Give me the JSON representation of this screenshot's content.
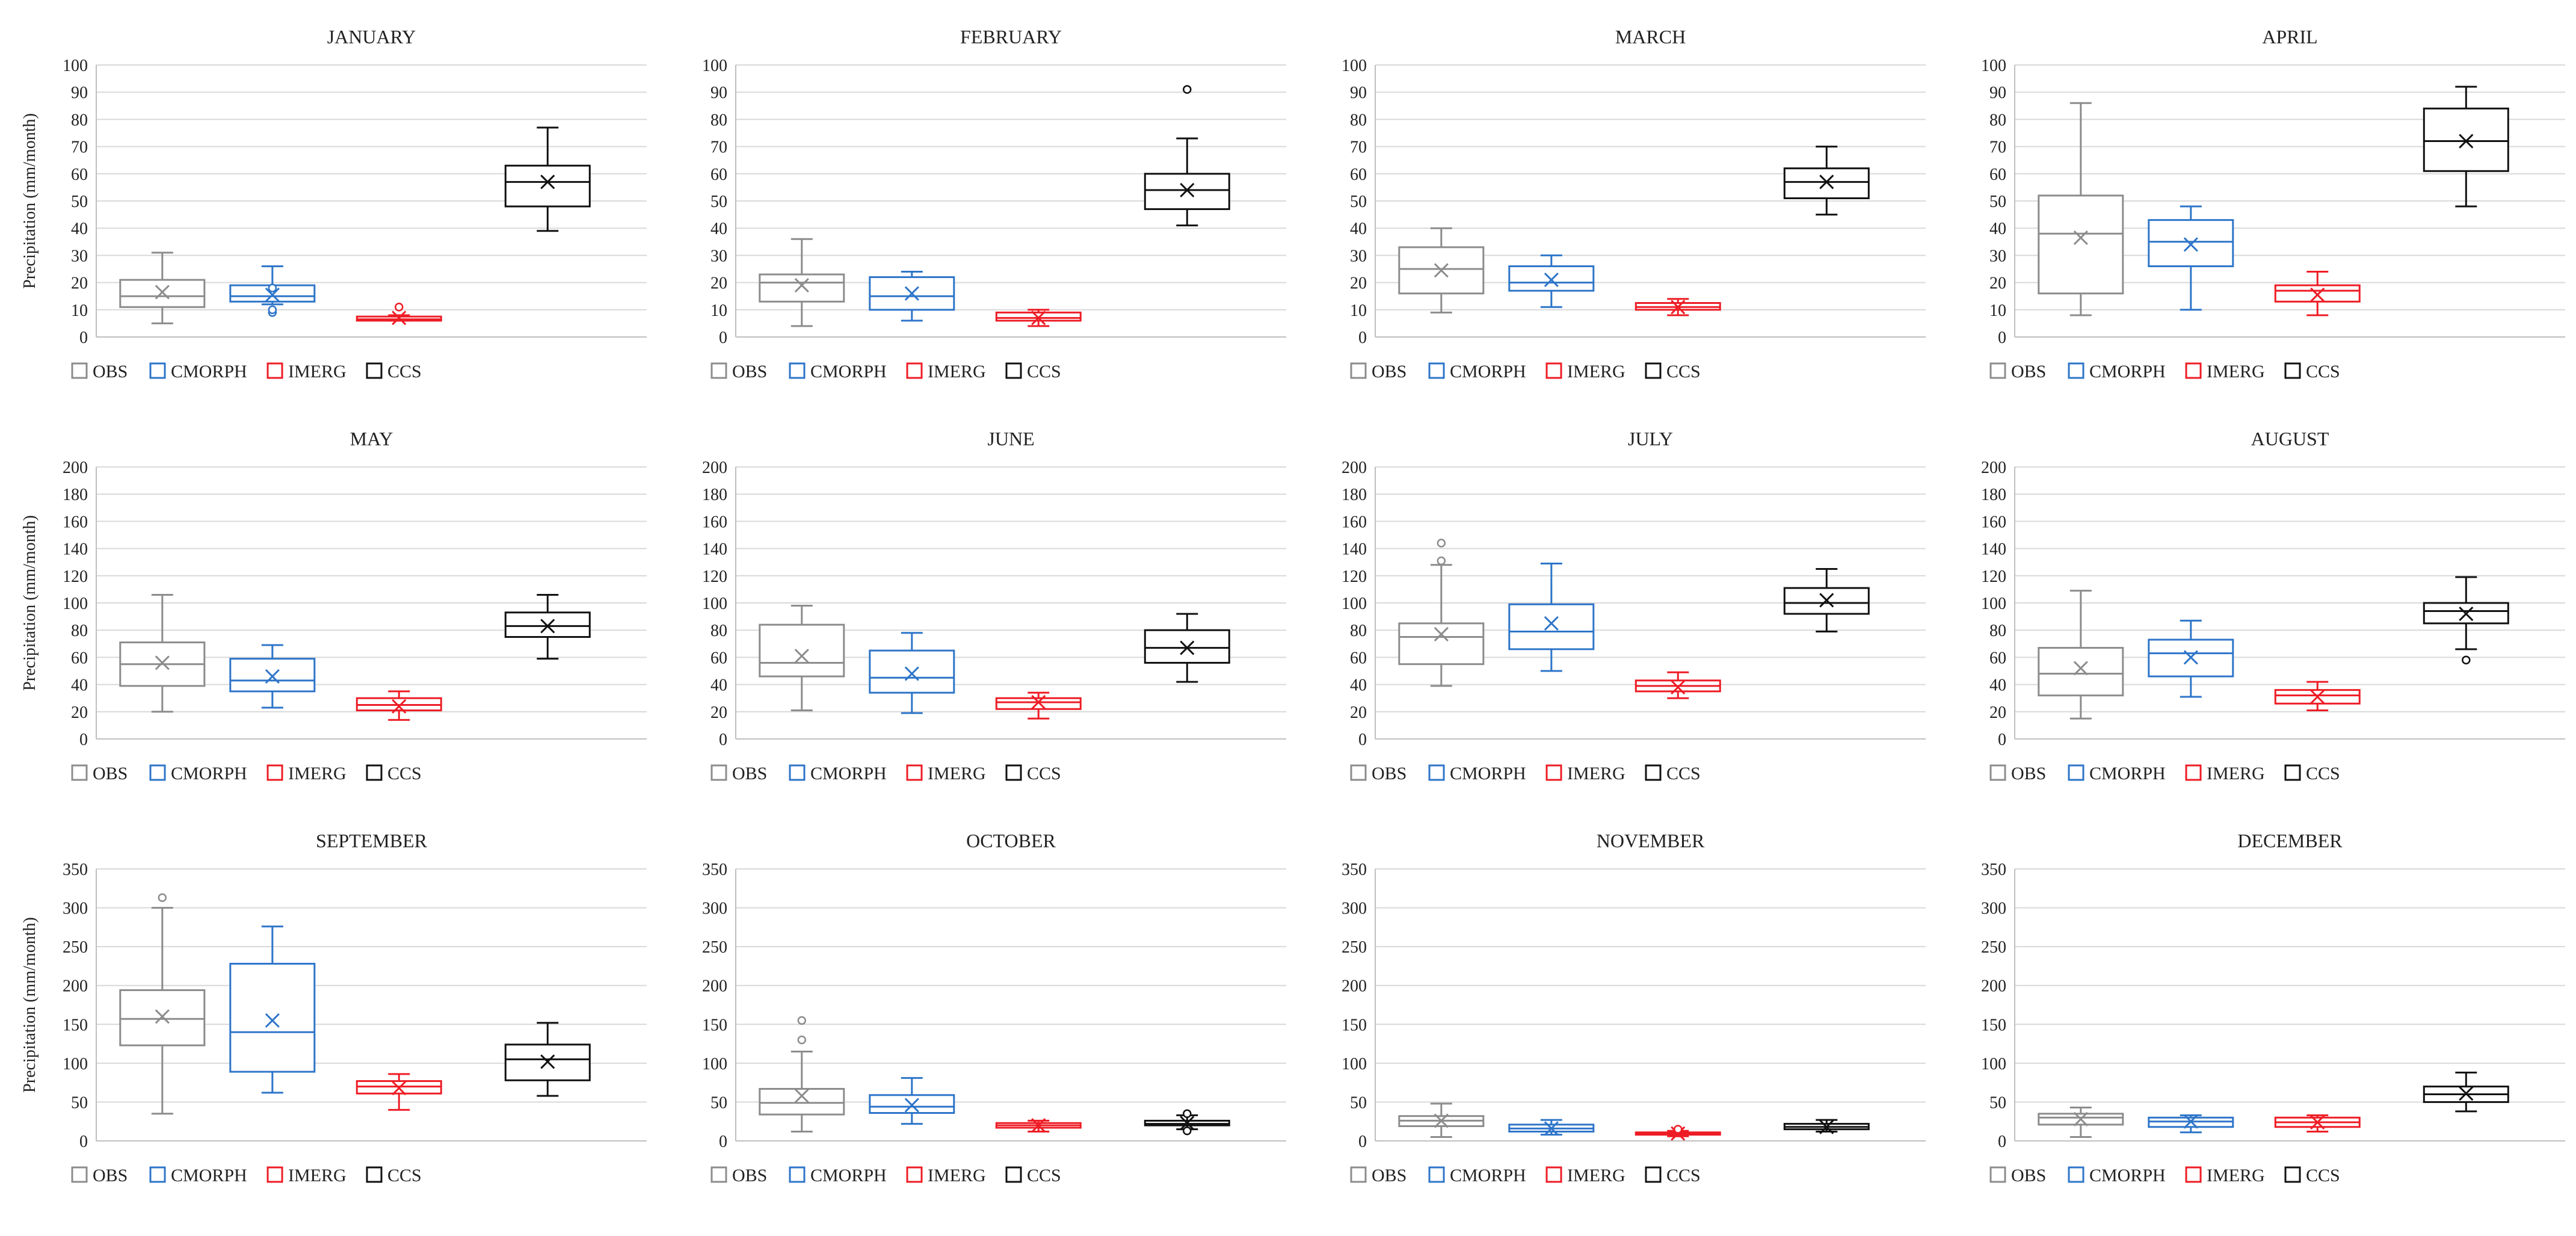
{
  "figure": {
    "ylabel": "Precipitation (mm/month)",
    "legend_placement": "bottom",
    "grid": true
  },
  "series": [
    {
      "name": "OBS",
      "color": "#8c8c8c"
    },
    {
      "name": "CMORPH",
      "color": "#2e75c9"
    },
    {
      "name": "IMERG",
      "color": "#ee1c25"
    },
    {
      "name": "CCS",
      "color": "#111111"
    }
  ],
  "chart_data": [
    {
      "type": "box",
      "title": "JANUARY",
      "ylim": [
        0,
        100
      ],
      "ytick_step": 10,
      "yticks": [
        "0",
        "10",
        "20",
        "30",
        "40",
        "50",
        "60",
        "70",
        "80",
        "90",
        "100"
      ],
      "boxes": [
        {
          "series": "OBS",
          "min": 5,
          "q1": 11,
          "median": 15,
          "q3": 21,
          "max": 31,
          "mean": 16.5,
          "outliers": []
        },
        {
          "series": "CMORPH",
          "min": 12,
          "q1": 13,
          "median": 15,
          "q3": 19,
          "max": 26,
          "mean": 15.5,
          "outliers": [
            9,
            10,
            18
          ]
        },
        {
          "series": "IMERG",
          "min": 6,
          "q1": 6,
          "median": 6.5,
          "q3": 7.5,
          "max": 8,
          "mean": 7,
          "outliers": [
            11
          ]
        },
        {
          "series": "CCS",
          "min": 39,
          "q1": 48,
          "median": 57,
          "q3": 63,
          "max": 77,
          "mean": 57,
          "outliers": []
        }
      ]
    },
    {
      "type": "box",
      "title": "FEBRUARY",
      "ylim": [
        0,
        100
      ],
      "ytick_step": 10,
      "yticks": [
        "0",
        "10",
        "20",
        "30",
        "40",
        "50",
        "60",
        "70",
        "80",
        "90",
        "100"
      ],
      "boxes": [
        {
          "series": "OBS",
          "min": 4,
          "q1": 13,
          "median": 20,
          "q3": 23,
          "max": 36,
          "mean": 19,
          "outliers": []
        },
        {
          "series": "CMORPH",
          "min": 6,
          "q1": 10,
          "median": 15,
          "q3": 22,
          "max": 24,
          "mean": 16,
          "outliers": []
        },
        {
          "series": "IMERG",
          "min": 4,
          "q1": 6,
          "median": 7,
          "q3": 9,
          "max": 10,
          "mean": 7,
          "outliers": []
        },
        {
          "series": "CCS",
          "min": 41,
          "q1": 47,
          "median": 54,
          "q3": 60,
          "max": 73,
          "mean": 54,
          "outliers": [
            91
          ]
        }
      ]
    },
    {
      "type": "box",
      "title": "MARCH",
      "ylim": [
        0,
        100
      ],
      "ytick_step": 10,
      "yticks": [
        "0",
        "10",
        "20",
        "30",
        "40",
        "50",
        "60",
        "70",
        "80",
        "90",
        "100"
      ],
      "boxes": [
        {
          "series": "OBS",
          "min": 9,
          "q1": 16,
          "median": 25,
          "q3": 33,
          "max": 40,
          "mean": 24.5,
          "outliers": []
        },
        {
          "series": "CMORPH",
          "min": 11,
          "q1": 17,
          "median": 20,
          "q3": 26,
          "max": 30,
          "mean": 21,
          "outliers": []
        },
        {
          "series": "IMERG",
          "min": 8,
          "q1": 10,
          "median": 11,
          "q3": 12.5,
          "max": 14,
          "mean": 11,
          "outliers": []
        },
        {
          "series": "CCS",
          "min": 45,
          "q1": 51,
          "median": 57,
          "q3": 62,
          "max": 70,
          "mean": 57,
          "outliers": []
        }
      ]
    },
    {
      "type": "box",
      "title": "APRIL",
      "ylim": [
        0,
        100
      ],
      "ytick_step": 10,
      "yticks": [
        "0",
        "10",
        "20",
        "30",
        "40",
        "50",
        "60",
        "70",
        "80",
        "90",
        "100"
      ],
      "boxes": [
        {
          "series": "OBS",
          "min": 8,
          "q1": 16,
          "median": 38,
          "q3": 52,
          "max": 86,
          "mean": 36.5,
          "outliers": []
        },
        {
          "series": "CMORPH",
          "min": 10,
          "q1": 26,
          "median": 35,
          "q3": 43,
          "max": 48,
          "mean": 34,
          "outliers": []
        },
        {
          "series": "IMERG",
          "min": 8,
          "q1": 13,
          "median": 17,
          "q3": 19,
          "max": 24,
          "mean": 15.5,
          "outliers": []
        },
        {
          "series": "CCS",
          "min": 48,
          "q1": 61,
          "median": 72,
          "q3": 84,
          "max": 92,
          "mean": 72,
          "outliers": []
        }
      ]
    },
    {
      "type": "box",
      "title": "MAY",
      "ylim": [
        0,
        200
      ],
      "ytick_step": 20,
      "yticks": [
        "0",
        "20",
        "40",
        "60",
        "80",
        "100",
        "120",
        "140",
        "160",
        "180",
        "200"
      ],
      "boxes": [
        {
          "series": "OBS",
          "min": 20,
          "q1": 39,
          "median": 55,
          "q3": 71,
          "max": 106,
          "mean": 56,
          "outliers": []
        },
        {
          "series": "CMORPH",
          "min": 23,
          "q1": 35,
          "median": 43,
          "q3": 59,
          "max": 69,
          "mean": 46,
          "outliers": []
        },
        {
          "series": "IMERG",
          "min": 14,
          "q1": 21,
          "median": 25,
          "q3": 30,
          "max": 35,
          "mean": 24,
          "outliers": []
        },
        {
          "series": "CCS",
          "min": 59,
          "q1": 75,
          "median": 83,
          "q3": 93,
          "max": 106,
          "mean": 83,
          "outliers": []
        }
      ]
    },
    {
      "type": "box",
      "title": "JUNE",
      "ylim": [
        0,
        200
      ],
      "ytick_step": 20,
      "yticks": [
        "0",
        "20",
        "40",
        "60",
        "80",
        "100",
        "120",
        "140",
        "160",
        "180",
        "200"
      ],
      "boxes": [
        {
          "series": "OBS",
          "min": 21,
          "q1": 46,
          "median": 56,
          "q3": 84,
          "max": 98,
          "mean": 61,
          "outliers": []
        },
        {
          "series": "CMORPH",
          "min": 19,
          "q1": 34,
          "median": 45,
          "q3": 65,
          "max": 78,
          "mean": 48,
          "outliers": []
        },
        {
          "series": "IMERG",
          "min": 15,
          "q1": 22,
          "median": 27,
          "q3": 30,
          "max": 34,
          "mean": 27,
          "outliers": []
        },
        {
          "series": "CCS",
          "min": 42,
          "q1": 56,
          "median": 67,
          "q3": 80,
          "max": 92,
          "mean": 67,
          "outliers": []
        }
      ]
    },
    {
      "type": "box",
      "title": "JULY",
      "ylim": [
        0,
        200
      ],
      "ytick_step": 20,
      "yticks": [
        "0",
        "20",
        "40",
        "60",
        "80",
        "100",
        "120",
        "140",
        "160",
        "180",
        "200"
      ],
      "boxes": [
        {
          "series": "OBS",
          "min": 39,
          "q1": 55,
          "median": 75,
          "q3": 85,
          "max": 128,
          "mean": 77,
          "outliers": [
            131,
            144
          ]
        },
        {
          "series": "CMORPH",
          "min": 50,
          "q1": 66,
          "median": 79,
          "q3": 99,
          "max": 129,
          "mean": 85,
          "outliers": []
        },
        {
          "series": "IMERG",
          "min": 30,
          "q1": 35,
          "median": 39,
          "q3": 43,
          "max": 49,
          "mean": 38,
          "outliers": []
        },
        {
          "series": "CCS",
          "min": 79,
          "q1": 92,
          "median": 100,
          "q3": 111,
          "max": 125,
          "mean": 102,
          "outliers": []
        }
      ]
    },
    {
      "type": "box",
      "title": "AUGUST",
      "ylim": [
        0,
        200
      ],
      "ytick_step": 20,
      "yticks": [
        "0",
        "20",
        "40",
        "60",
        "80",
        "100",
        "120",
        "140",
        "160",
        "180",
        "200"
      ],
      "boxes": [
        {
          "series": "OBS",
          "min": 15,
          "q1": 32,
          "median": 48,
          "q3": 67,
          "max": 109,
          "mean": 52,
          "outliers": []
        },
        {
          "series": "CMORPH",
          "min": 31,
          "q1": 46,
          "median": 63,
          "q3": 73,
          "max": 87,
          "mean": 60,
          "outliers": []
        },
        {
          "series": "IMERG",
          "min": 21,
          "q1": 26,
          "median": 32,
          "q3": 36,
          "max": 42,
          "mean": 31,
          "outliers": []
        },
        {
          "series": "CCS",
          "min": 66,
          "q1": 85,
          "median": 94,
          "q3": 100,
          "max": 119,
          "mean": 92,
          "outliers": [
            58
          ]
        }
      ]
    },
    {
      "type": "box",
      "title": "SEPTEMBER",
      "ylim": [
        0,
        350
      ],
      "ytick_step": 50,
      "yticks": [
        "0",
        "50",
        "100",
        "150",
        "200",
        "250",
        "300",
        "350"
      ],
      "boxes": [
        {
          "series": "OBS",
          "min": 35,
          "q1": 123,
          "median": 157,
          "q3": 194,
          "max": 300,
          "mean": 160,
          "outliers": [
            313
          ]
        },
        {
          "series": "CMORPH",
          "min": 62,
          "q1": 89,
          "median": 140,
          "q3": 228,
          "max": 276,
          "mean": 155,
          "outliers": []
        },
        {
          "series": "IMERG",
          "min": 40,
          "q1": 61,
          "median": 70,
          "q3": 77,
          "max": 86,
          "mean": 68,
          "outliers": []
        },
        {
          "series": "CCS",
          "min": 58,
          "q1": 78,
          "median": 105,
          "q3": 124,
          "max": 152,
          "mean": 102,
          "outliers": []
        }
      ]
    },
    {
      "type": "box",
      "title": "OCTOBER",
      "ylim": [
        0,
        350
      ],
      "ytick_step": 50,
      "yticks": [
        "0",
        "50",
        "100",
        "150",
        "200",
        "250",
        "300",
        "350"
      ],
      "boxes": [
        {
          "series": "OBS",
          "min": 12,
          "q1": 34,
          "median": 49,
          "q3": 67,
          "max": 115,
          "mean": 58,
          "outliers": [
            130,
            155
          ]
        },
        {
          "series": "CMORPH",
          "min": 22,
          "q1": 36,
          "median": 44,
          "q3": 59,
          "max": 81,
          "mean": 46,
          "outliers": []
        },
        {
          "series": "IMERG",
          "min": 12,
          "q1": 17,
          "median": 20,
          "q3": 23,
          "max": 26,
          "mean": 20,
          "outliers": []
        },
        {
          "series": "CCS",
          "min": 15,
          "q1": 20,
          "median": 22,
          "q3": 26,
          "max": 33,
          "mean": 23,
          "outliers": [
            13,
            35
          ]
        }
      ]
    },
    {
      "type": "box",
      "title": "NOVEMBER",
      "ylim": [
        0,
        350
      ],
      "ytick_step": 50,
      "yticks": [
        "0",
        "50",
        "100",
        "150",
        "200",
        "250",
        "300",
        "350"
      ],
      "boxes": [
        {
          "series": "OBS",
          "min": 5,
          "q1": 19,
          "median": 26,
          "q3": 32,
          "max": 48,
          "mean": 26,
          "outliers": []
        },
        {
          "series": "CMORPH",
          "min": 8,
          "q1": 12,
          "median": 16,
          "q3": 21,
          "max": 27,
          "mean": 16,
          "outliers": []
        },
        {
          "series": "IMERG",
          "min": 6,
          "q1": 8,
          "median": 10,
          "q3": 11,
          "max": 13,
          "mean": 9.5,
          "outliers": [
            15
          ]
        },
        {
          "series": "CCS",
          "min": 12,
          "q1": 15,
          "median": 18,
          "q3": 22,
          "max": 27,
          "mean": 18,
          "outliers": []
        }
      ]
    },
    {
      "type": "box",
      "title": "DECEMBER",
      "ylim": [
        0,
        350
      ],
      "ytick_step": 50,
      "yticks": [
        "0",
        "50",
        "100",
        "150",
        "200",
        "250",
        "300",
        "350"
      ],
      "boxes": [
        {
          "series": "OBS",
          "min": 5,
          "q1": 21,
          "median": 30,
          "q3": 35,
          "max": 43,
          "mean": 28,
          "outliers": []
        },
        {
          "series": "CMORPH",
          "min": 11,
          "q1": 18,
          "median": 25,
          "q3": 30,
          "max": 33,
          "mean": 25,
          "outliers": []
        },
        {
          "series": "IMERG",
          "min": 12,
          "q1": 18,
          "median": 24,
          "q3": 30,
          "max": 33,
          "mean": 24,
          "outliers": []
        },
        {
          "series": "CCS",
          "min": 38,
          "q1": 50,
          "median": 60,
          "q3": 70,
          "max": 88,
          "mean": 61,
          "outliers": []
        }
      ]
    }
  ]
}
